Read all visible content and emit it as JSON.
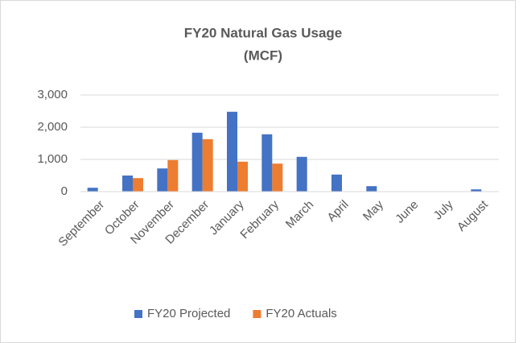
{
  "chart_data": {
    "type": "bar",
    "title": "FY20 Natural Gas Usage",
    "subtitle": "(MCF)",
    "categories": [
      "September",
      "October",
      "November",
      "December",
      "January",
      "February",
      "March",
      "April",
      "May",
      "June",
      "July",
      "August"
    ],
    "series": [
      {
        "name": "FY20 Projected",
        "color": "#4472c4",
        "values": [
          120,
          500,
          720,
          1830,
          2480,
          1780,
          1080,
          530,
          170,
          0,
          0,
          70
        ]
      },
      {
        "name": "FY20 Actuals",
        "color": "#ed7d31",
        "values": [
          null,
          420,
          980,
          1630,
          930,
          870,
          null,
          null,
          null,
          null,
          null,
          null
        ]
      }
    ],
    "ylim": [
      0,
      3000
    ],
    "yticks": [
      0,
      {
        "value": 1000,
        "label": "1,000"
      },
      {
        "value": 2000,
        "label": "2,000"
      },
      {
        "value": 3000,
        "label": "3,000"
      }
    ],
    "grid": true,
    "legend": "bottom"
  }
}
